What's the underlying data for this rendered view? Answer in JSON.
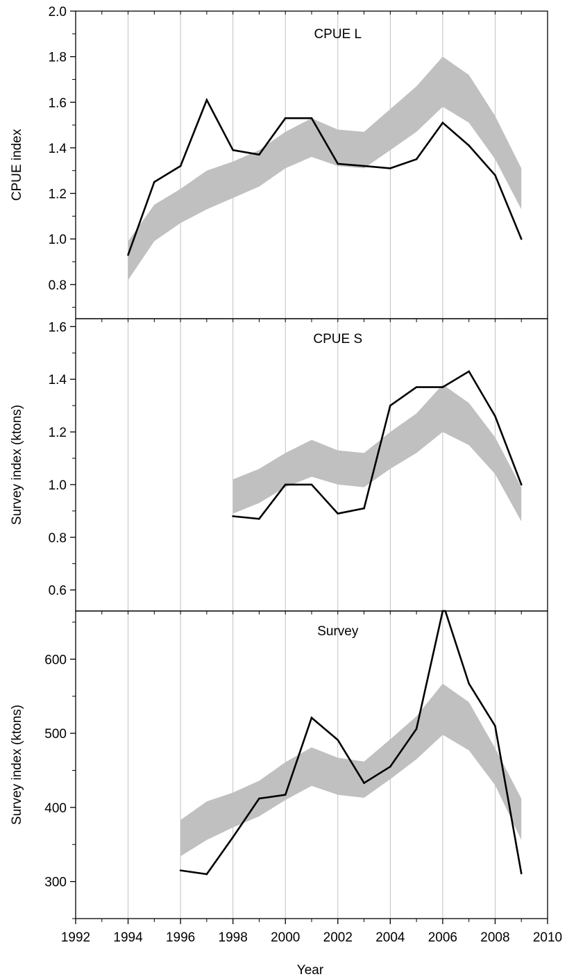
{
  "figure": {
    "xlabel": "Year",
    "xlim": [
      1992,
      2010
    ],
    "x_ticks": [
      1992,
      1994,
      1996,
      1998,
      2000,
      2002,
      2004,
      2006,
      2008,
      2010
    ],
    "x_grid_years": [
      1994,
      1996,
      1998,
      2000,
      2002,
      2004,
      2006,
      2008
    ],
    "grid": true,
    "colors": {
      "observed_line": "#000000",
      "band_fill": "#c0c0c0",
      "grid": "#c0c0c0"
    }
  },
  "chart_data": [
    {
      "type": "line",
      "panel_label": "CPUE L",
      "ylabel": "CPUE index",
      "ylim": [
        0.65,
        2.0
      ],
      "y_ticks": [
        0.8,
        1.0,
        1.2,
        1.4,
        1.6,
        1.8,
        2.0
      ],
      "y_tick_labels": [
        "0.8",
        "1.0",
        "1.2",
        "1.4",
        "1.6",
        "1.8",
        "2.0"
      ],
      "observed": {
        "x": [
          1994,
          1995,
          1996,
          1997,
          1998,
          1999,
          2000,
          2001,
          2002,
          2003,
          2004,
          2005,
          2006,
          2007,
          2008,
          2009
        ],
        "y": [
          0.93,
          1.25,
          1.32,
          1.61,
          1.39,
          1.37,
          1.53,
          1.53,
          1.33,
          1.32,
          1.31,
          1.35,
          1.51,
          1.41,
          1.28,
          1.0
        ]
      },
      "band": {
        "x": [
          1994,
          1995,
          1996,
          1997,
          1998,
          1999,
          2000,
          2001,
          2002,
          2003,
          2004,
          2005,
          2006,
          2007,
          2008,
          2009
        ],
        "lower": [
          0.82,
          0.99,
          1.07,
          1.13,
          1.18,
          1.23,
          1.31,
          1.36,
          1.32,
          1.31,
          1.39,
          1.47,
          1.58,
          1.51,
          1.35,
          1.13
        ],
        "upper": [
          0.99,
          1.15,
          1.22,
          1.3,
          1.34,
          1.39,
          1.47,
          1.53,
          1.48,
          1.47,
          1.57,
          1.67,
          1.8,
          1.72,
          1.54,
          1.31
        ]
      }
    },
    {
      "type": "line",
      "panel_label": "CPUE S",
      "ylabel": "Survey index (ktons)",
      "ylim": [
        0.52,
        1.63
      ],
      "y_ticks": [
        0.6,
        0.8,
        1.0,
        1.2,
        1.4,
        1.6
      ],
      "y_tick_labels": [
        "0.6",
        "0.8",
        "1.0",
        "1.2",
        "1.4",
        "1.6"
      ],
      "observed": {
        "x": [
          1998,
          1999,
          2000,
          2001,
          2002,
          2003,
          2004,
          2005,
          2006,
          2007,
          2008,
          2009
        ],
        "y": [
          0.88,
          0.87,
          1.0,
          1.0,
          0.89,
          0.91,
          1.3,
          1.37,
          1.37,
          1.43,
          1.26,
          1.0
        ]
      },
      "band": {
        "x": [
          1998,
          1999,
          2000,
          2001,
          2002,
          2003,
          2004,
          2005,
          2006,
          2007,
          2008,
          2009
        ],
        "lower": [
          0.89,
          0.93,
          0.99,
          1.03,
          1.0,
          0.99,
          1.06,
          1.12,
          1.2,
          1.15,
          1.04,
          0.86
        ],
        "upper": [
          1.02,
          1.06,
          1.12,
          1.17,
          1.13,
          1.12,
          1.2,
          1.27,
          1.38,
          1.31,
          1.18,
          0.99
        ]
      }
    },
    {
      "type": "line",
      "panel_label": "Survey",
      "ylabel": "Survey index (ktons)",
      "ylim": [
        250,
        665
      ],
      "y_ticks": [
        300,
        400,
        500,
        600
      ],
      "y_tick_labels": [
        "300",
        "400",
        "500",
        "600"
      ],
      "observed": {
        "x": [
          1996,
          1997,
          1998,
          1999,
          2000,
          2001,
          2002,
          2003,
          2004,
          2005,
          2006,
          2006.1,
          2007,
          2008,
          2009
        ],
        "y": [
          315,
          310,
          360,
          412,
          417,
          521,
          491,
          433,
          455,
          506,
          665,
          665,
          567,
          510,
          311
        ]
      },
      "band": {
        "x": [
          1996,
          1997,
          1998,
          1999,
          2000,
          2001,
          2002,
          2003,
          2004,
          2005,
          2006,
          2007,
          2008,
          2009
        ],
        "lower": [
          334,
          356,
          373,
          388,
          410,
          429,
          417,
          413,
          438,
          465,
          498,
          477,
          430,
          356
        ],
        "upper": [
          383,
          408,
          420,
          436,
          461,
          481,
          467,
          462,
          492,
          523,
          567,
          542,
          480,
          412
        ]
      }
    }
  ]
}
